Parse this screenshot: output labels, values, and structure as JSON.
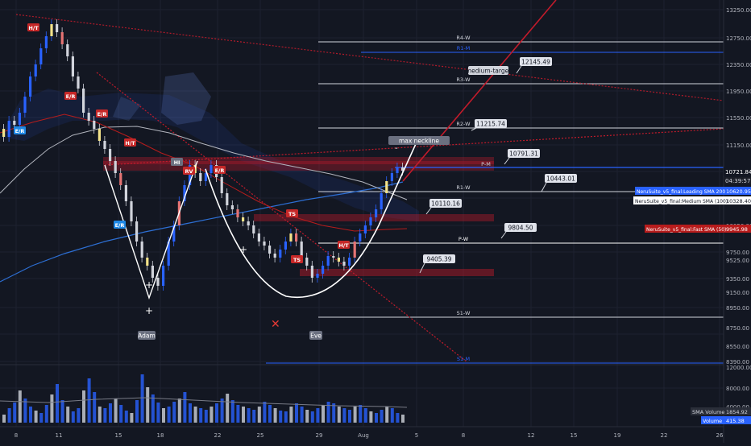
{
  "header": {
    "window_label": ""
  },
  "price_axis": {
    "ticks": [
      "13250.00",
      "12750.00",
      "12350.00",
      "11950.00",
      "11550.00",
      "11150.00",
      "10721.84",
      "10328.40",
      "10050.00",
      "9750.00",
      "9525.00",
      "9350.00",
      "9150.00",
      "8950.00",
      "8750.00",
      "8550.00",
      "8390.00"
    ],
    "last_price": "10721.84",
    "countdown": "04:39:57",
    "leading_sma": "10620.95",
    "medium_sma": "10328.40",
    "fast_sma": "9945.98"
  },
  "volume_axis": {
    "ticks": [
      "12000.00",
      "8000.00",
      "4000.00"
    ]
  },
  "time_axis": {
    "ticks": [
      "8",
      "11",
      "15",
      "18",
      "22",
      "25",
      "29",
      "Aug",
      "5",
      "8",
      "12",
      "15",
      "19",
      "22",
      "26"
    ]
  },
  "indicator_labels": {
    "leading": "NeruSuite_v5_final:Leading SMA 200",
    "medium": "NeruSuite_v5_final:Medium SMA (100)",
    "fast": "NeruSuite_v5_final:Fast SMA (50)",
    "sma_volume_label": "SMA Volume",
    "sma_volume_value": "1854.92",
    "volume_label": "Volume",
    "volume_value": "415.38"
  },
  "levels": {
    "r4w": "R4-W",
    "r3w": "R3-W",
    "r2w": "R2-W",
    "r1w": "R1-W",
    "pw": "P-W",
    "pm": "P-M",
    "s1w": "S1-W",
    "r1m": "R1-M",
    "s1m": "S1-M"
  },
  "price_callouts": [
    "12145.49",
    "11215.74",
    "10791.31",
    "10443.01",
    "10110.16",
    "9804.50",
    "9405.39"
  ],
  "annotations": {
    "medium_target": "medium-target",
    "max_neckline": "max neckline",
    "adam": "Adam",
    "eve": "Eve",
    "ht1": "H/T",
    "ht2": "H/T",
    "ht3": "H/T",
    "er1": "E/R",
    "er2": "E/R",
    "er3": "E/R",
    "er4": "E/R",
    "er5": "E/R",
    "hi1": "HI",
    "hi2": "HI",
    "rv": "RV",
    "ts1": "TS",
    "ts2": "TS"
  },
  "colors": {
    "background": "#131722",
    "bull": "#2962ff",
    "bear": "#d1d4dc",
    "resistance": "#c21b2b",
    "leading_sma": "#2d6fd4",
    "medium_sma": "#b2b5be",
    "fast_sma": "#b71c1c"
  }
}
